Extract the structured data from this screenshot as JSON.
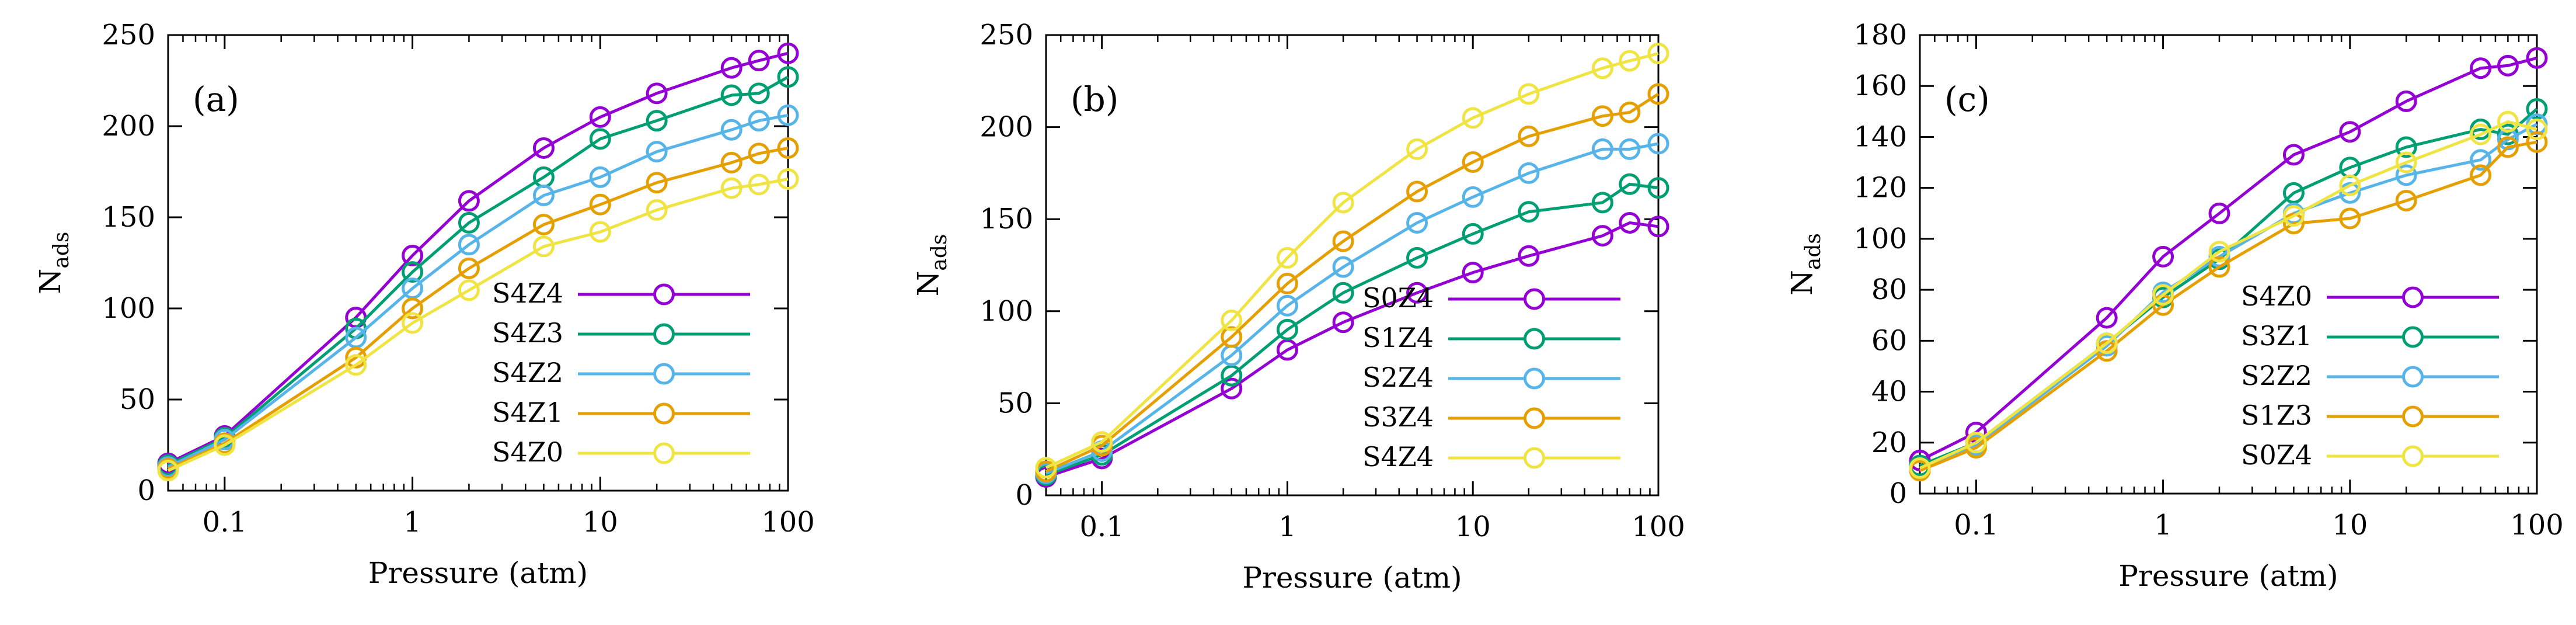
{
  "figure": {
    "colors": {
      "purple": "#9400d3",
      "green": "#009e73",
      "blue": "#56b4e9",
      "orange": "#e69f00",
      "yellow": "#f0e442"
    }
  },
  "chart_data": [
    {
      "type": "line",
      "panel_label": "(a)",
      "xlabel": "Pressure (atm)",
      "ylabel": "N",
      "ylabel_sub": "ads",
      "xscale": "log",
      "xlim": [
        0.05,
        100
      ],
      "ylim": [
        0,
        250
      ],
      "xticks": [
        0.1,
        1,
        10,
        100
      ],
      "xtick_labels": [
        "0.1",
        "1",
        "10",
        "100"
      ],
      "yticks": [
        0,
        50,
        100,
        150,
        200,
        250
      ],
      "ytick_labels": [
        "0",
        "50",
        "100",
        "150",
        "200",
        "250"
      ],
      "legend_position": "bottom-right",
      "x": [
        0.05,
        0.1,
        0.5,
        1,
        2,
        5,
        10,
        20,
        50,
        70,
        100
      ],
      "series": [
        {
          "name": "S4Z4",
          "color": "#9400d3",
          "values": [
            15,
            30,
            95,
            129,
            159,
            188,
            205,
            218,
            232,
            236,
            240
          ]
        },
        {
          "name": "S4Z3",
          "color": "#009e73",
          "values": [
            14,
            29,
            89,
            120,
            147,
            172,
            193,
            203,
            217,
            218,
            227
          ]
        },
        {
          "name": "S4Z2",
          "color": "#56b4e9",
          "values": [
            13,
            28,
            84,
            111,
            135,
            162,
            172,
            186,
            198,
            203,
            206
          ]
        },
        {
          "name": "S4Z1",
          "color": "#e69f00",
          "values": [
            12,
            26,
            73,
            100,
            122,
            146,
            157,
            169,
            180,
            185,
            188
          ]
        },
        {
          "name": "S4Z0",
          "color": "#f0e442",
          "values": [
            11,
            25,
            69,
            92,
            110,
            134,
            142,
            154,
            166,
            168,
            171
          ]
        }
      ]
    },
    {
      "type": "line",
      "panel_label": "(b)",
      "xlabel": "Pressure (atm)",
      "ylabel": "N",
      "ylabel_sub": "ads",
      "xscale": "log",
      "xlim": [
        0.05,
        100
      ],
      "ylim": [
        0,
        250
      ],
      "xticks": [
        0.1,
        1,
        10,
        100
      ],
      "xtick_labels": [
        "0.1",
        "1",
        "10",
        "100"
      ],
      "yticks": [
        0,
        50,
        100,
        150,
        200,
        250
      ],
      "ytick_labels": [
        "0",
        "50",
        "100",
        "150",
        "200",
        "250"
      ],
      "legend_position": "bottom-right",
      "x": [
        0.05,
        0.1,
        0.5,
        1,
        2,
        5,
        10,
        20,
        50,
        70,
        100
      ],
      "series": [
        {
          "name": "S0Z4",
          "color": "#9400d3",
          "values": [
            10,
            20,
            58,
            79,
            94,
            110,
            121,
            130,
            141,
            148,
            146
          ]
        },
        {
          "name": "S1Z4",
          "color": "#009e73",
          "values": [
            11,
            22,
            65,
            90,
            110,
            129,
            142,
            154,
            159,
            169,
            167
          ]
        },
        {
          "name": "S2Z4",
          "color": "#56b4e9",
          "values": [
            12,
            24,
            76,
            103,
            124,
            148,
            162,
            175,
            188,
            188,
            191
          ]
        },
        {
          "name": "S3Z4",
          "color": "#e69f00",
          "values": [
            13,
            27,
            86,
            115,
            138,
            165,
            181,
            195,
            206,
            208,
            218
          ]
        },
        {
          "name": "S4Z4",
          "color": "#f0e442",
          "values": [
            15,
            29,
            95,
            129,
            159,
            188,
            205,
            218,
            232,
            236,
            240
          ]
        }
      ]
    },
    {
      "type": "line",
      "panel_label": "(c)",
      "xlabel": "Pressure (atm)",
      "ylabel": "N",
      "ylabel_sub": "ads",
      "xscale": "log",
      "xlim": [
        0.05,
        100
      ],
      "ylim": [
        0,
        180
      ],
      "xticks": [
        0.1,
        1,
        10,
        100
      ],
      "xtick_labels": [
        "0.1",
        "1",
        "10",
        "100"
      ],
      "yticks": [
        0,
        20,
        40,
        60,
        80,
        100,
        120,
        140,
        160,
        180
      ],
      "ytick_labels": [
        "0",
        "20",
        "40",
        "60",
        "80",
        "100",
        "120",
        "140",
        "160",
        "180"
      ],
      "legend_position": "bottom-right",
      "x": [
        0.05,
        0.1,
        0.5,
        1,
        2,
        5,
        10,
        20,
        50,
        70,
        100
      ],
      "series": [
        {
          "name": "S4Z0",
          "color": "#9400d3",
          "values": [
            13,
            24,
            69,
            93,
            110,
            133,
            142,
            154,
            167,
            168,
            171
          ]
        },
        {
          "name": "S3Z1",
          "color": "#009e73",
          "values": [
            11,
            20,
            59,
            77,
            92,
            118,
            128,
            136,
            143,
            141,
            151
          ]
        },
        {
          "name": "S2Z2",
          "color": "#56b4e9",
          "values": [
            10,
            19,
            58,
            79,
            93,
            110,
            118,
            125,
            131,
            139,
            145
          ]
        },
        {
          "name": "S1Z3",
          "color": "#e69f00",
          "values": [
            9,
            18,
            56,
            74,
            89,
            106,
            108,
            115,
            125,
            136,
            138
          ]
        },
        {
          "name": "S0Z4",
          "color": "#f0e442",
          "values": [
            10,
            20,
            59,
            78,
            95,
            109,
            121,
            130,
            141,
            146,
            143
          ]
        }
      ]
    }
  ]
}
